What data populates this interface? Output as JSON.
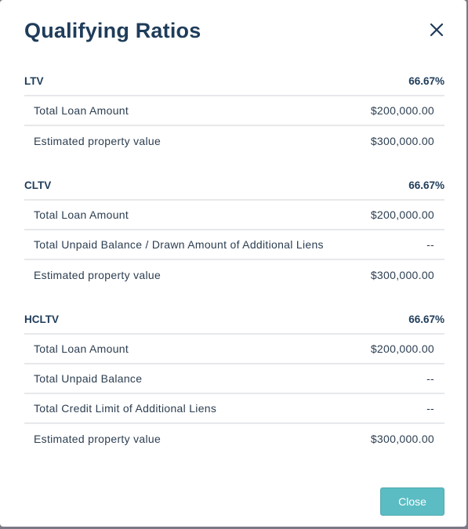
{
  "modal": {
    "title": "Qualifying Ratios",
    "close_label": "Close"
  },
  "sections": [
    {
      "label": "LTV",
      "value": "66.67%",
      "rows": [
        {
          "label": "Total Loan Amount",
          "value": "$200,000.00"
        },
        {
          "label": "Estimated property value",
          "value": "$300,000.00"
        }
      ]
    },
    {
      "label": "CLTV",
      "value": "66.67%",
      "rows": [
        {
          "label": "Total Loan Amount",
          "value": "$200,000.00"
        },
        {
          "label": "Total Unpaid Balance / Drawn Amount of Additional Liens",
          "value": "--"
        },
        {
          "label": "Estimated property value",
          "value": "$300,000.00"
        }
      ]
    },
    {
      "label": "HCLTV",
      "value": "66.67%",
      "rows": [
        {
          "label": "Total Loan Amount",
          "value": "$200,000.00"
        },
        {
          "label": "Total Unpaid Balance",
          "value": "--"
        },
        {
          "label": "Total Credit Limit of Additional Liens",
          "value": "--"
        },
        {
          "label": "Estimated property value",
          "value": "$300,000.00"
        }
      ]
    }
  ],
  "colors": {
    "title": "#1f3c5a",
    "accent": "#5bbcc3",
    "divider": "#e6e8eb",
    "backdrop": "#7a7a86"
  },
  "icons": {
    "close": "close-icon"
  }
}
